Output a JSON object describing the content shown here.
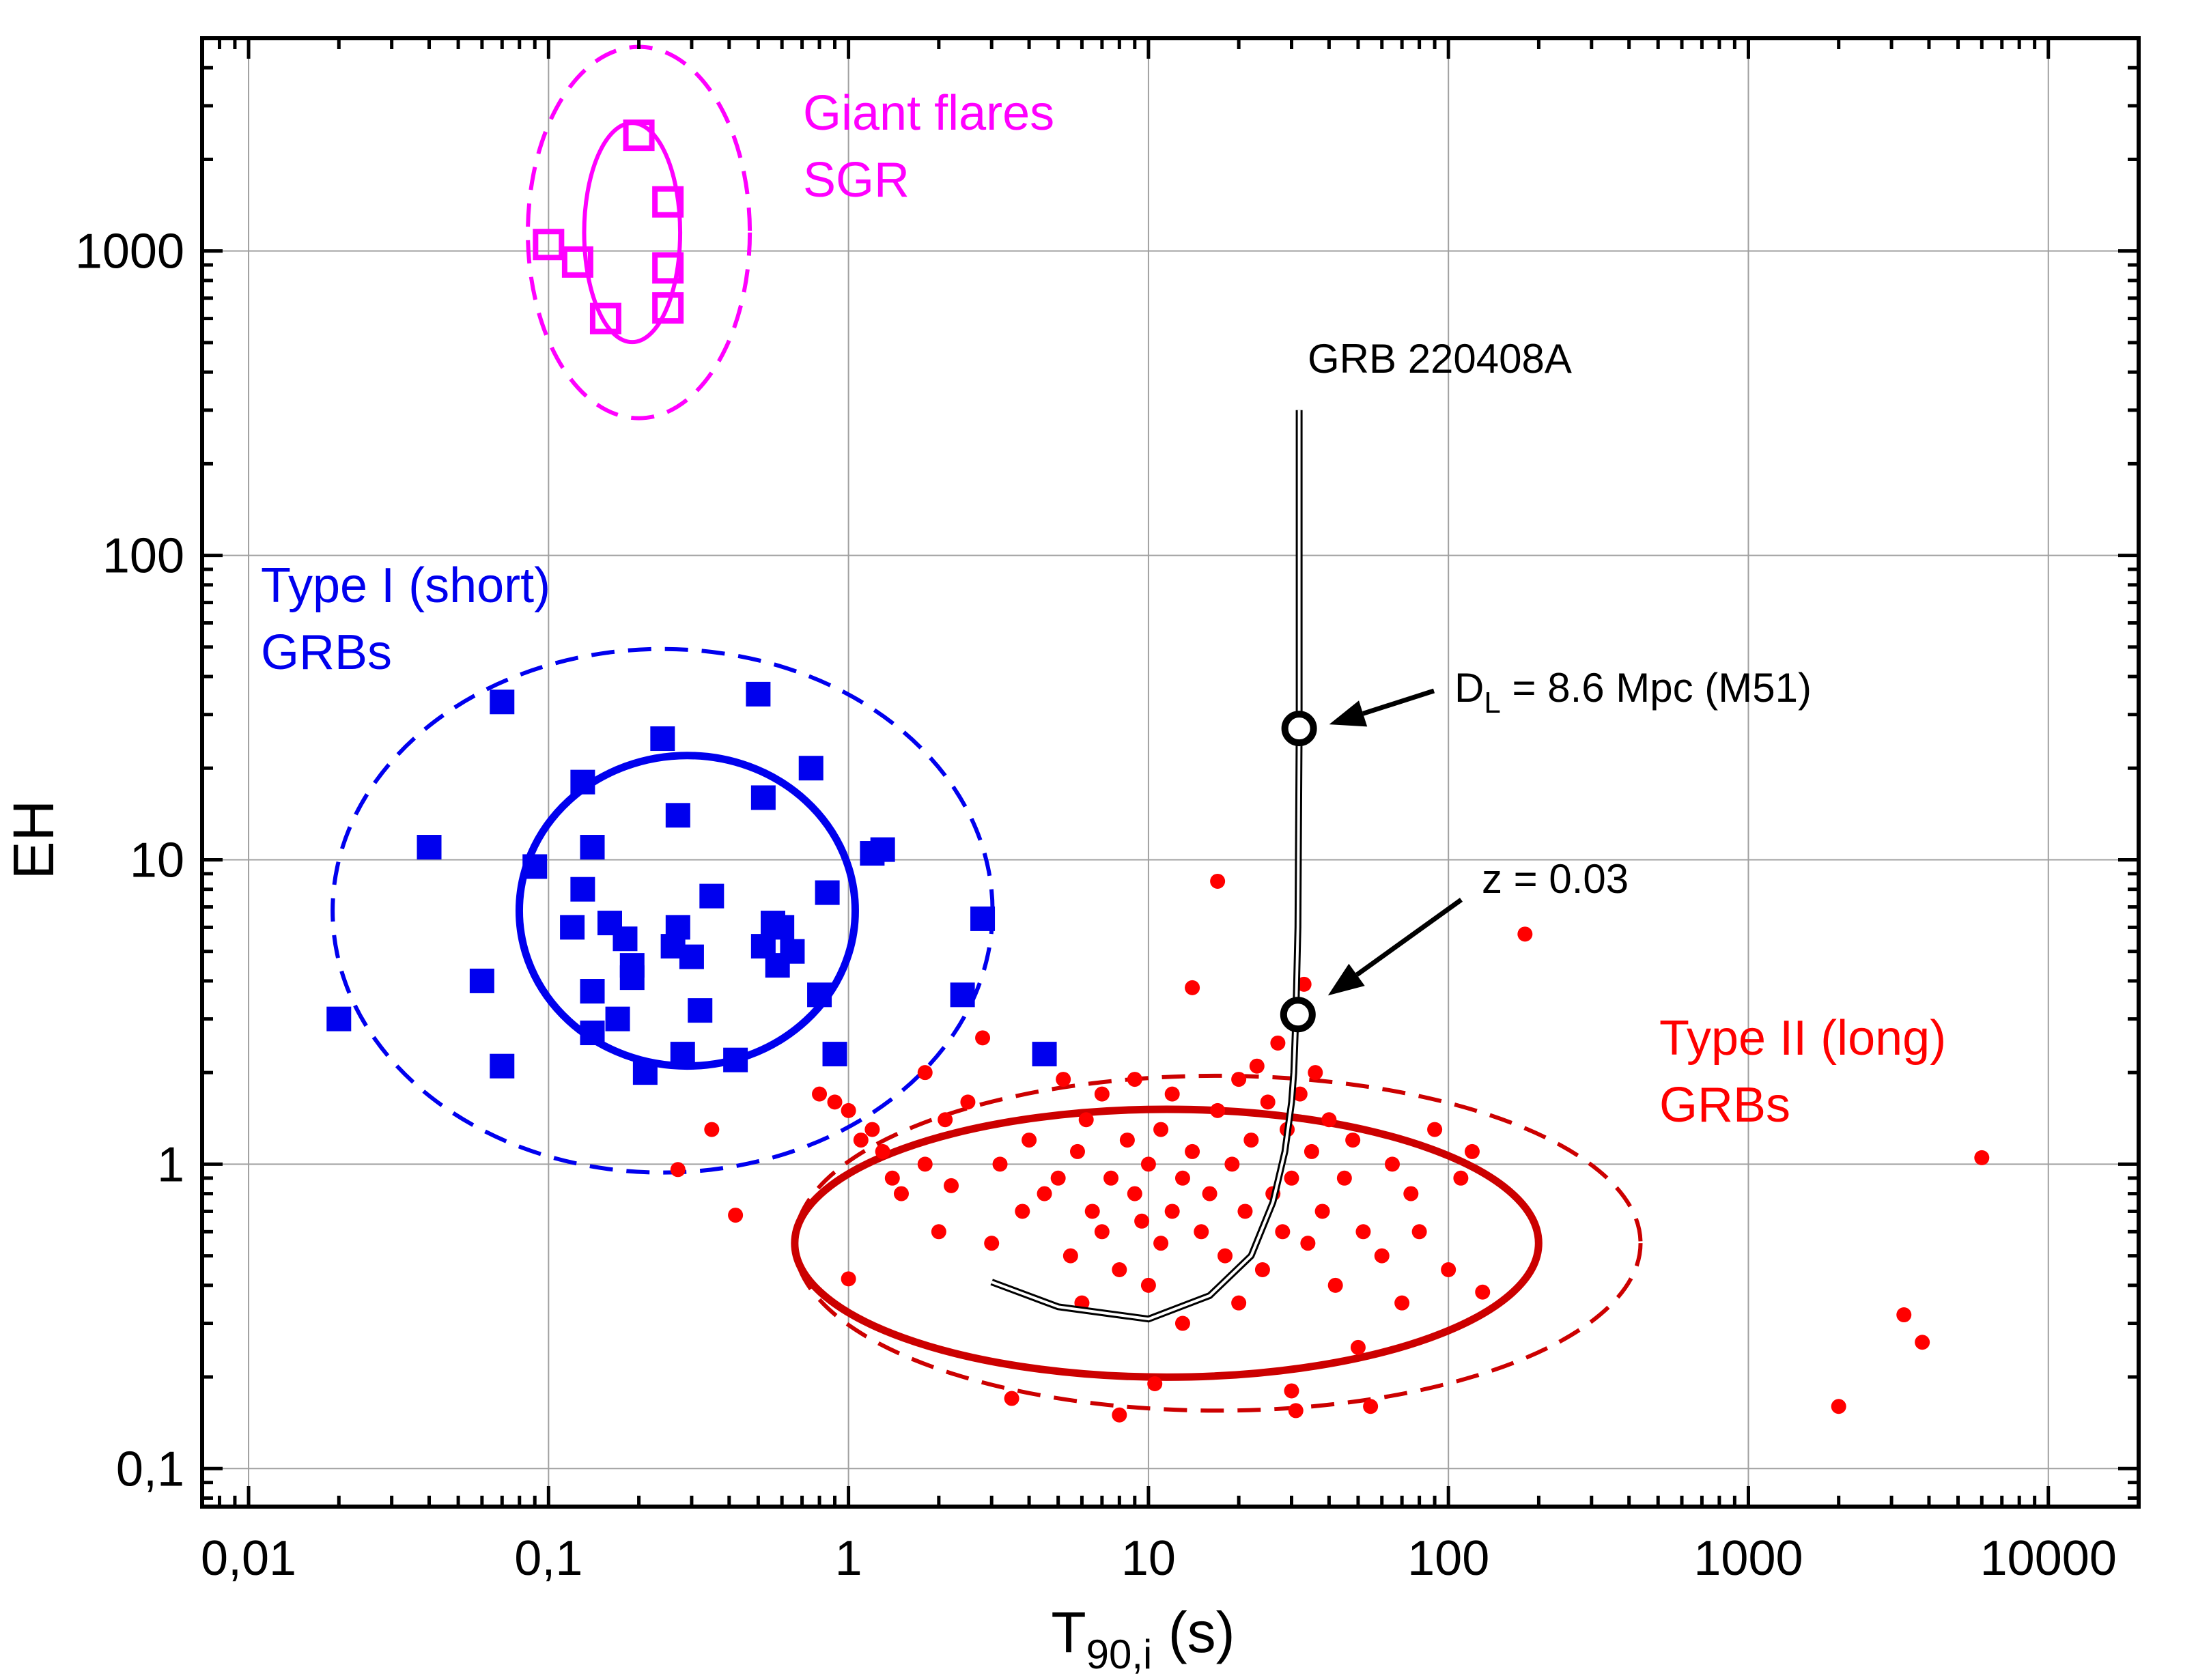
{
  "chart_data": {
    "type": "scatter",
    "xlabel": "T",
    "xlabel_sub": "90,i",
    "xlabel_unit": " (s)",
    "ylabel": "EH",
    "xscale": "log",
    "yscale": "log",
    "xlim": [
      0.007,
      20000
    ],
    "ylim": [
      0.075,
      5000
    ],
    "grid": true,
    "x_ticks": [
      {
        "value": 0.01,
        "label": "0,01"
      },
      {
        "value": 0.1,
        "label": "0,1"
      },
      {
        "value": 1,
        "label": "1"
      },
      {
        "value": 10,
        "label": "10"
      },
      {
        "value": 100,
        "label": "100"
      },
      {
        "value": 1000,
        "label": "1000"
      },
      {
        "value": 10000,
        "label": "10000"
      }
    ],
    "y_ticks": [
      {
        "value": 0.1,
        "label": "0,1"
      },
      {
        "value": 1,
        "label": "1"
      },
      {
        "value": 10,
        "label": "10"
      },
      {
        "value": 100,
        "label": "100"
      },
      {
        "value": 1000,
        "label": "1000"
      }
    ],
    "groups": [
      {
        "key": "sgr",
        "label_lines": [
          "Giant flares",
          "SGR"
        ],
        "color": "#ff00ff",
        "marker": "open-square",
        "points": [
          [
            0.2,
            2400
          ],
          [
            0.25,
            1450
          ],
          [
            0.1,
            1050
          ],
          [
            0.125,
            920
          ],
          [
            0.25,
            880
          ],
          [
            0.155,
            600
          ],
          [
            0.25,
            650
          ]
        ],
        "ellipse_inner": {
          "center": [
            0.19,
            1150
          ],
          "log_rx": 0.16,
          "log_ry": 0.36
        },
        "ellipse_outer": {
          "center": [
            0.2,
            1150
          ],
          "log_rx": 0.37,
          "log_ry": 0.61
        }
      },
      {
        "key": "type1",
        "label_lines": [
          "Type I (short)",
          "GRBs"
        ],
        "color": "#0000ee",
        "marker": "filled-square",
        "points": [
          [
            0.02,
            3.0
          ],
          [
            0.04,
            11.0
          ],
          [
            0.07,
            33.0
          ],
          [
            0.06,
            4.0
          ],
          [
            0.07,
            2.1
          ],
          [
            0.09,
            9.5
          ],
          [
            0.12,
            6.0
          ],
          [
            0.13,
            8.0
          ],
          [
            0.13,
            18.0
          ],
          [
            0.14,
            11.0
          ],
          [
            0.14,
            3.7
          ],
          [
            0.14,
            2.7
          ],
          [
            0.16,
            6.2
          ],
          [
            0.17,
            3.0
          ],
          [
            0.18,
            5.5
          ],
          [
            0.19,
            4.1
          ],
          [
            0.19,
            4.5
          ],
          [
            0.21,
            2.0
          ],
          [
            0.24,
            25.0
          ],
          [
            0.26,
            5.2
          ],
          [
            0.27,
            14.0
          ],
          [
            0.27,
            6.0
          ],
          [
            0.28,
            2.3
          ],
          [
            0.3,
            4.8
          ],
          [
            0.32,
            3.2
          ],
          [
            0.35,
            7.6
          ],
          [
            0.42,
            2.2
          ],
          [
            0.5,
            35.0
          ],
          [
            0.52,
            16.0
          ],
          [
            0.52,
            5.2
          ],
          [
            0.56,
            6.2
          ],
          [
            0.58,
            4.5
          ],
          [
            0.6,
            6.0
          ],
          [
            0.65,
            5.0
          ],
          [
            0.75,
            20.0
          ],
          [
            0.8,
            3.6
          ],
          [
            0.85,
            7.8
          ],
          [
            0.9,
            2.3
          ],
          [
            1.2,
            10.5
          ],
          [
            1.3,
            10.8
          ],
          [
            2.4,
            3.6
          ],
          [
            2.8,
            6.4
          ],
          [
            4.5,
            2.3
          ]
        ],
        "ellipse_inner": {
          "center": [
            0.29,
            6.8
          ],
          "log_rx": 0.56,
          "log_ry": 0.51
        },
        "ellipse_outer": {
          "center": [
            0.24,
            6.8
          ],
          "log_rx": 1.1,
          "log_ry": 0.86
        }
      },
      {
        "key": "type2",
        "label_lines": [
          "Type II (long)",
          "GRBs"
        ],
        "color": "#ff0000",
        "marker": "filled-circle",
        "ellipse_color": "#cc0000",
        "points": [
          [
            0.27,
            0.96
          ],
          [
            0.35,
            1.3
          ],
          [
            0.42,
            0.68
          ],
          [
            0.8,
            1.7
          ],
          [
            0.9,
            1.6
          ],
          [
            1.0,
            1.5
          ],
          [
            1.0,
            0.42
          ],
          [
            1.1,
            1.2
          ],
          [
            1.2,
            1.3
          ],
          [
            1.3,
            1.1
          ],
          [
            1.4,
            0.9
          ],
          [
            1.5,
            0.8
          ],
          [
            1.8,
            2.0
          ],
          [
            1.8,
            1.0
          ],
          [
            2.0,
            0.6
          ],
          [
            2.1,
            1.4
          ],
          [
            2.2,
            0.85
          ],
          [
            2.5,
            1.6
          ],
          [
            2.8,
            2.6
          ],
          [
            3.0,
            0.55
          ],
          [
            3.2,
            1.0
          ],
          [
            3.5,
            0.17
          ],
          [
            3.8,
            0.7
          ],
          [
            4.0,
            1.2
          ],
          [
            4.5,
            0.8
          ],
          [
            5.0,
            0.9
          ],
          [
            5.2,
            1.9
          ],
          [
            5.5,
            0.5
          ],
          [
            5.8,
            1.1
          ],
          [
            6.0,
            0.35
          ],
          [
            6.2,
            1.4
          ],
          [
            6.5,
            0.7
          ],
          [
            7.0,
            0.6
          ],
          [
            7.0,
            1.7
          ],
          [
            7.5,
            0.9
          ],
          [
            8.0,
            0.15
          ],
          [
            8.0,
            0.45
          ],
          [
            8.5,
            1.2
          ],
          [
            9.0,
            0.8
          ],
          [
            9.0,
            1.9
          ],
          [
            9.5,
            0.65
          ],
          [
            10.0,
            0.4
          ],
          [
            10.0,
            1.0
          ],
          [
            10.5,
            0.19
          ],
          [
            11.0,
            1.3
          ],
          [
            11.0,
            0.55
          ],
          [
            12.0,
            0.7
          ],
          [
            12.0,
            1.7
          ],
          [
            13.0,
            0.9
          ],
          [
            13.0,
            0.3
          ],
          [
            14.0,
            1.1
          ],
          [
            14.0,
            3.8
          ],
          [
            15.0,
            0.6
          ],
          [
            16.0,
            0.8
          ],
          [
            17.0,
            8.5
          ],
          [
            17.0,
            1.5
          ],
          [
            18.0,
            0.5
          ],
          [
            19.0,
            1.0
          ],
          [
            20.0,
            0.35
          ],
          [
            20.0,
            1.9
          ],
          [
            21.0,
            0.7
          ],
          [
            22.0,
            1.2
          ],
          [
            23.0,
            2.1
          ],
          [
            24.0,
            0.45
          ],
          [
            25.0,
            1.6
          ],
          [
            26.0,
            0.8
          ],
          [
            27.0,
            2.5
          ],
          [
            28.0,
            0.6
          ],
          [
            29.0,
            1.3
          ],
          [
            30.0,
            0.18
          ],
          [
            30.0,
            0.9
          ],
          [
            31.0,
            0.155
          ],
          [
            32.0,
            1.7
          ],
          [
            33.0,
            3.9
          ],
          [
            34.0,
            0.55
          ],
          [
            35.0,
            1.1
          ],
          [
            36.0,
            2.0
          ],
          [
            38.0,
            0.7
          ],
          [
            40.0,
            1.4
          ],
          [
            42.0,
            0.4
          ],
          [
            45.0,
            0.9
          ],
          [
            48.0,
            1.2
          ],
          [
            50.0,
            0.25
          ],
          [
            52.0,
            0.6
          ],
          [
            55.0,
            0.16
          ],
          [
            60.0,
            0.5
          ],
          [
            65.0,
            1.0
          ],
          [
            70.0,
            0.35
          ],
          [
            75.0,
            0.8
          ],
          [
            80.0,
            0.6
          ],
          [
            90.0,
            1.3
          ],
          [
            100.0,
            0.45
          ],
          [
            110.0,
            0.9
          ],
          [
            120.0,
            1.1
          ],
          [
            130.0,
            0.38
          ],
          [
            180.0,
            5.7
          ],
          [
            2000.0,
            0.16
          ],
          [
            3300.0,
            0.32
          ],
          [
            3800.0,
            0.26
          ],
          [
            6000.0,
            1.05
          ]
        ],
        "ellipse_inner": {
          "center": [
            11.5,
            0.55
          ],
          "log_rx": 1.24,
          "log_ry": 0.44
        },
        "ellipse_outer": {
          "center": [
            17.0,
            0.55
          ],
          "log_rx": 1.41,
          "log_ry": 0.55
        }
      }
    ],
    "track": {
      "label": "GRB 220408A",
      "points": [
        [
          31.8,
          300
        ],
        [
          31.8,
          27
        ],
        [
          31.5,
          6
        ],
        [
          31.0,
          3.1
        ],
        [
          30.5,
          2.0
        ],
        [
          30.0,
          1.6
        ],
        [
          28.5,
          1.1
        ],
        [
          26.0,
          0.75
        ],
        [
          22.0,
          0.5
        ],
        [
          16.0,
          0.37
        ],
        [
          10.0,
          0.31
        ],
        [
          5.0,
          0.34
        ],
        [
          3.0,
          0.41
        ]
      ],
      "markers": [
        {
          "x": 31.8,
          "y": 27,
          "label_pre": "D",
          "label_sub": "L",
          "label_post": " = 8.6 Mpc (M51)"
        },
        {
          "x": 31.5,
          "y": 3.1,
          "label_pre": "z = 0.03",
          "label_sub": "",
          "label_post": ""
        }
      ]
    }
  }
}
